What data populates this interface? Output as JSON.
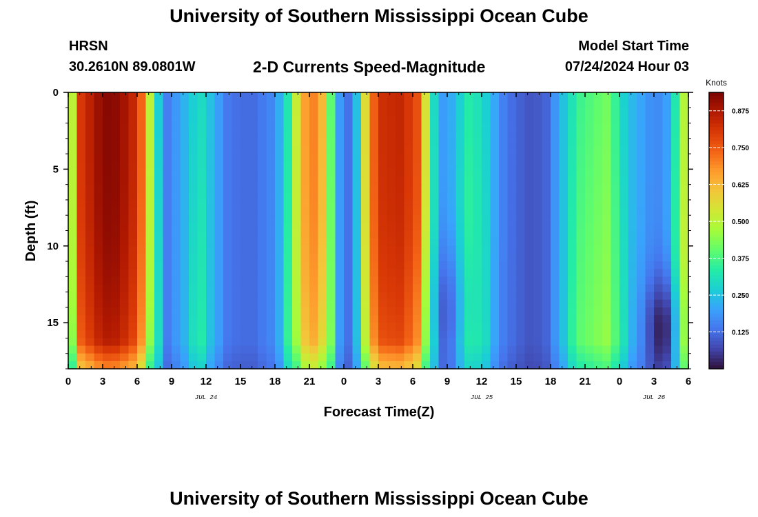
{
  "header": {
    "title": "University of Southern Mississippi Ocean Cube",
    "station": "HRSN",
    "coordinates": "30.2610N  89.0801W",
    "plot_title": "2-D Currents Speed-Magnitude",
    "model_start_label": "Model Start Time",
    "model_start_value": "07/24/2024 Hour 03"
  },
  "footer": {
    "title": "University of Southern Mississippi Ocean Cube"
  },
  "colors": {
    "background": "#ffffff",
    "axis": "#000000",
    "scale": [
      "#30123b",
      "#4145ab",
      "#4675ed",
      "#39a2fc",
      "#1bcfd4",
      "#24eca6",
      "#61fc6c",
      "#a4fc3b",
      "#d1e834",
      "#f3c63a",
      "#fe9b2d",
      "#f36315",
      "#d93806",
      "#b11901",
      "#7a0403"
    ]
  },
  "chart_data": {
    "type": "heatmap",
    "title": "2-D Currents Speed-Magnitude",
    "xlabel": "Forecast Time(Z)",
    "ylabel": "Depth (ft)",
    "x_range": [
      0,
      54
    ],
    "y_range": [
      0,
      18
    ],
    "x_tick_values": [
      0,
      3,
      6,
      9,
      12,
      15,
      18,
      21,
      24,
      27,
      30,
      33,
      36,
      39,
      42,
      45,
      48,
      51,
      54
    ],
    "x_tick_labels": [
      "0",
      "3",
      "6",
      "9",
      "12",
      "15",
      "18",
      "21",
      "0",
      "3",
      "6",
      "9",
      "12",
      "15",
      "18",
      "21",
      "0",
      "3",
      "6"
    ],
    "y_tick_values": [
      0,
      5,
      10,
      15
    ],
    "y_tick_labels": [
      "0",
      "5",
      "10",
      "15"
    ],
    "date_labels": [
      {
        "x": 12,
        "text": "JUL 24"
      },
      {
        "x": 36,
        "text": "JUL 25"
      },
      {
        "x": 51,
        "text": "JUL 26"
      }
    ],
    "colorbar": {
      "unit": "Knots",
      "range": [
        0,
        0.9375
      ],
      "tick_values": [
        0.125,
        0.25,
        0.375,
        0.5,
        0.625,
        0.75,
        0.875
      ],
      "tick_labels": [
        "0.125",
        "0.250",
        "0.375",
        "0.500",
        "0.625",
        "0.750",
        "0.875"
      ]
    },
    "time_profile_knots": [
      {
        "t": 0.0,
        "v": 0.36
      },
      {
        "t": 0.5,
        "v": 0.55
      },
      {
        "t": 1.0,
        "v": 0.8
      },
      {
        "t": 2.0,
        "v": 0.86
      },
      {
        "t": 3.0,
        "v": 0.92
      },
      {
        "t": 4.0,
        "v": 0.92
      },
      {
        "t": 5.5,
        "v": 0.86
      },
      {
        "t": 6.5,
        "v": 0.72
      },
      {
        "t": 7.2,
        "v": 0.48
      },
      {
        "t": 7.8,
        "v": 0.28
      },
      {
        "t": 8.5,
        "v": 0.14
      },
      {
        "t": 10.0,
        "v": 0.22
      },
      {
        "t": 11.5,
        "v": 0.3
      },
      {
        "t": 12.5,
        "v": 0.24
      },
      {
        "t": 14.0,
        "v": 0.13
      },
      {
        "t": 16.0,
        "v": 0.12
      },
      {
        "t": 18.0,
        "v": 0.17
      },
      {
        "t": 19.3,
        "v": 0.34
      },
      {
        "t": 20.0,
        "v": 0.56
      },
      {
        "t": 21.0,
        "v": 0.72
      },
      {
        "t": 22.0,
        "v": 0.66
      },
      {
        "t": 22.8,
        "v": 0.42
      },
      {
        "t": 23.5,
        "v": 0.2
      },
      {
        "t": 24.5,
        "v": 0.12
      },
      {
        "t": 25.3,
        "v": 0.28
      },
      {
        "t": 26.0,
        "v": 0.62
      },
      {
        "t": 27.0,
        "v": 0.82
      },
      {
        "t": 29.0,
        "v": 0.84
      },
      {
        "t": 30.5,
        "v": 0.76
      },
      {
        "t": 31.5,
        "v": 0.42
      },
      {
        "t": 32.2,
        "v": 0.18
      },
      {
        "t": 33.5,
        "v": 0.22
      },
      {
        "t": 35.0,
        "v": 0.34
      },
      {
        "t": 36.5,
        "v": 0.26
      },
      {
        "t": 38.0,
        "v": 0.14
      },
      {
        "t": 40.0,
        "v": 0.09
      },
      {
        "t": 41.5,
        "v": 0.1
      },
      {
        "t": 43.0,
        "v": 0.24
      },
      {
        "t": 44.5,
        "v": 0.36
      },
      {
        "t": 47.0,
        "v": 0.42
      },
      {
        "t": 48.5,
        "v": 0.26
      },
      {
        "t": 50.0,
        "v": 0.2
      },
      {
        "t": 51.0,
        "v": 0.16
      },
      {
        "t": 52.0,
        "v": 0.18
      },
      {
        "t": 53.0,
        "v": 0.34
      },
      {
        "t": 54.0,
        "v": 0.58
      }
    ],
    "cells": {
      "columns": 72,
      "rows": 36
    }
  }
}
